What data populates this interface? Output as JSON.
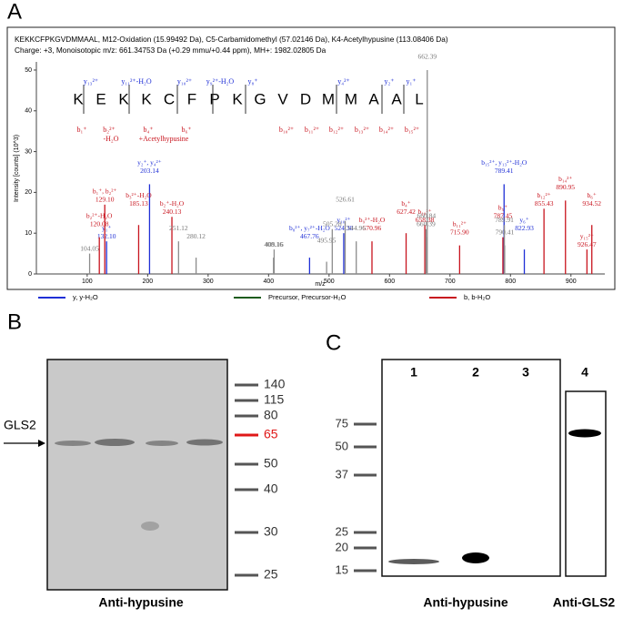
{
  "chart_data": {
    "type": "spectrum",
    "panel_label": "A",
    "title": "KEKKCFPKGVDMMAAL, M12-Oxidation (15.99492 Da), C5-Carbamidomethyl (57.02146 Da), K4-Acetylhypusine (113.08406 Da)",
    "subtitle": "Charge: +3,    Monoisotopic m/z: 661.34753 Da (+0.29 mmu/+0.44 ppm),    MH+: 1982.02805 Da",
    "xlabel": "m/z",
    "ylabel": "Intensity [counts] (10^3)",
    "xlim": [
      16,
      956
    ],
    "xticks": [
      100,
      200,
      300,
      400,
      500,
      600,
      700,
      800,
      900
    ],
    "ylim": [
      0,
      52
    ],
    "yticks": [
      0,
      10,
      20,
      30,
      40,
      50
    ],
    "sequence": [
      "K",
      "E",
      "K",
      "K",
      "C",
      "F",
      "P",
      "K",
      "G",
      "V",
      "D",
      "M",
      "M",
      "A",
      "A",
      "L"
    ],
    "top_fragments": [
      "y₁₃²⁺",
      "y₁₁²⁺-H₂O",
      "y₁₀²⁺",
      "y₉²⁺-H₂O",
      "y₈⁺",
      "y₄²⁺",
      "y₂⁺",
      "y₁⁺"
    ],
    "bottom_fragments": [
      "b₁⁺",
      "b₂²⁺",
      "-H₂O",
      "b₄⁺",
      "+Acetylhypusine",
      "b₆⁺",
      "b₁₀²⁺",
      "b₁₁²⁺",
      "b₁₂²⁺",
      "b₁₃²⁺",
      "b₁₄²⁺",
      "b₁₅²⁺"
    ],
    "series": [
      {
        "name": "y, y-H₂O",
        "color": "#1f2fd6",
        "x": [
          132.1,
          203.14,
          467.76,
          524.3,
          789.41,
          822.93
        ],
        "values": [
          8,
          22,
          4,
          10,
          22,
          6
        ],
        "x_labels": [
          "132.10",
          "203.14",
          "467.76",
          "524.30",
          "789.41",
          "822.93"
        ],
        "ions": [
          "y₁⁺",
          "y₂⁺, y₄²⁺",
          "b₈²⁺, y₇²⁺-H₂O",
          "y₁₀²⁺",
          "b₁₅²⁺, y₁₃²⁺-H₂O",
          "y₆⁺"
        ]
      },
      {
        "name": "Precursor, Precursor-H₂O",
        "color": "#1d5c1d",
        "x": [],
        "values": [],
        "x_labels": [],
        "ions": []
      },
      {
        "name": "b, b-H₂O",
        "color": "#c8141e",
        "x": [
          129.1,
          120.08,
          185.13,
          240.13,
          570.96,
          627.42,
          658.38,
          715.9,
          787.45,
          855.43,
          890.95,
          934.52,
          926.47
        ],
        "values": [
          17,
          9,
          12,
          14,
          8,
          10,
          12,
          7,
          9,
          16,
          18,
          12,
          6
        ],
        "x_labels": [
          "129.10",
          "120.08",
          "185.13",
          "240.13",
          "570.96",
          "627.42",
          "658.38",
          "715.90",
          "787.45",
          "855.43",
          "890.95",
          "934.52",
          "926.47"
        ],
        "ions": [
          "b₁⁺, b₂²⁺",
          "b₂²⁺-H₂O",
          "b₃²⁺-H₂O",
          "b₂⁺-H₂O",
          "b₉²⁺-H₂O",
          "b₄⁺",
          "b₁₀²⁺",
          "b₁₁²⁺",
          "b₅⁺",
          "b₁₂²⁺",
          "b₁₄²⁺",
          "b₆⁺",
          "y₁₅²⁺"
        ]
      },
      {
        "color": "#8c8c8c",
        "x": [
          104.05,
          251.12,
          280.12,
          409.16,
          408.16,
          495.95,
          505.28,
          544.96,
          526.61,
          660.39,
          662.39,
          660.84,
          789.91,
          790.41
        ],
        "values": [
          5,
          8,
          4,
          6,
          4,
          3,
          11,
          8,
          13,
          11,
          50,
          9,
          12,
          7
        ],
        "x_labels": [
          "104.05",
          "251.12",
          "280.12",
          "409.16",
          "408.16",
          "495.95",
          "505.28",
          "544.96",
          "526.61",
          "660.39",
          "662.39",
          "660.84",
          "789.91",
          "790.41"
        ]
      }
    ]
  },
  "panel_b": {
    "label": "B",
    "target": "GLS2",
    "markers": [
      140,
      115,
      80,
      65,
      50,
      40,
      30,
      25
    ],
    "highlight_color": "#e01818",
    "antibody": "Anti-hypusine"
  },
  "panel_c": {
    "label": "C",
    "lanes": [
      "1",
      "2",
      "3",
      "4"
    ],
    "markers": [
      75,
      50,
      37,
      25,
      20,
      15
    ],
    "antibodies": [
      "Anti-hypusine",
      "Anti-GLS2"
    ]
  }
}
